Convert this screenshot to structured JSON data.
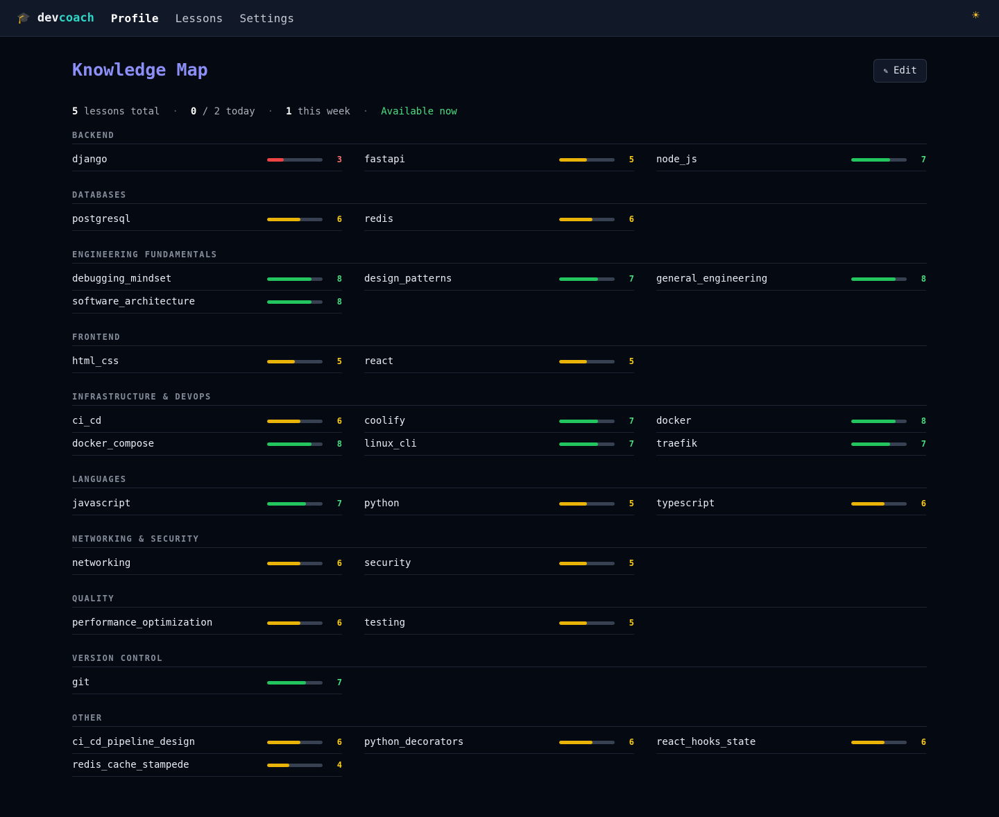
{
  "app": {
    "brand_icon": "graduation-cap-icon",
    "brand_dev": "dev",
    "brand_coach": "coach"
  },
  "nav": [
    {
      "label": "Profile",
      "active": true
    },
    {
      "label": "Lessons",
      "active": false
    },
    {
      "label": "Settings",
      "active": false
    }
  ],
  "theme_toggle_icon": "sun-icon",
  "page": {
    "title": "Knowledge Map",
    "edit_label": "Edit",
    "edit_icon": "pencil-icon"
  },
  "stats": {
    "lessons_total_count": "5",
    "lessons_total_label": "lessons total",
    "today_done": "0",
    "today_rest": "/ 2 today",
    "week_count": "1",
    "week_label": "this week",
    "availability": "Available now"
  },
  "colors": {
    "low": "#ef4444",
    "mid": "#eab308",
    "high": "#22c55e",
    "low_text": "#f87171",
    "mid_text": "#facc15",
    "high_text": "#4ade80"
  },
  "scale_max": 10,
  "sections": [
    {
      "name": "BACKEND",
      "skills": [
        {
          "name": "django",
          "score": 3
        },
        {
          "name": "fastapi",
          "score": 5
        },
        {
          "name": "node_js",
          "score": 7
        }
      ]
    },
    {
      "name": "DATABASES",
      "skills": [
        {
          "name": "postgresql",
          "score": 6
        },
        {
          "name": "redis",
          "score": 6
        }
      ]
    },
    {
      "name": "ENGINEERING FUNDAMENTALS",
      "skills": [
        {
          "name": "debugging_mindset",
          "score": 8
        },
        {
          "name": "design_patterns",
          "score": 7
        },
        {
          "name": "general_engineering",
          "score": 8
        },
        {
          "name": "software_architecture",
          "score": 8
        }
      ]
    },
    {
      "name": "FRONTEND",
      "skills": [
        {
          "name": "html_css",
          "score": 5
        },
        {
          "name": "react",
          "score": 5
        }
      ]
    },
    {
      "name": "INFRASTRUCTURE & DEVOPS",
      "skills": [
        {
          "name": "ci_cd",
          "score": 6
        },
        {
          "name": "coolify",
          "score": 7
        },
        {
          "name": "docker",
          "score": 8
        },
        {
          "name": "docker_compose",
          "score": 8
        },
        {
          "name": "linux_cli",
          "score": 7
        },
        {
          "name": "traefik",
          "score": 7
        }
      ]
    },
    {
      "name": "LANGUAGES",
      "skills": [
        {
          "name": "javascript",
          "score": 7
        },
        {
          "name": "python",
          "score": 5
        },
        {
          "name": "typescript",
          "score": 6
        }
      ]
    },
    {
      "name": "NETWORKING & SECURITY",
      "skills": [
        {
          "name": "networking",
          "score": 6
        },
        {
          "name": "security",
          "score": 5
        }
      ]
    },
    {
      "name": "QUALITY",
      "skills": [
        {
          "name": "performance_optimization",
          "score": 6
        },
        {
          "name": "testing",
          "score": 5
        }
      ]
    },
    {
      "name": "VERSION CONTROL",
      "skills": [
        {
          "name": "git",
          "score": 7
        }
      ]
    },
    {
      "name": "OTHER",
      "skills": [
        {
          "name": "ci_cd_pipeline_design",
          "score": 6
        },
        {
          "name": "python_decorators",
          "score": 6
        },
        {
          "name": "react_hooks_state",
          "score": 6
        },
        {
          "name": "redis_cache_stampede",
          "score": 4
        }
      ]
    }
  ]
}
